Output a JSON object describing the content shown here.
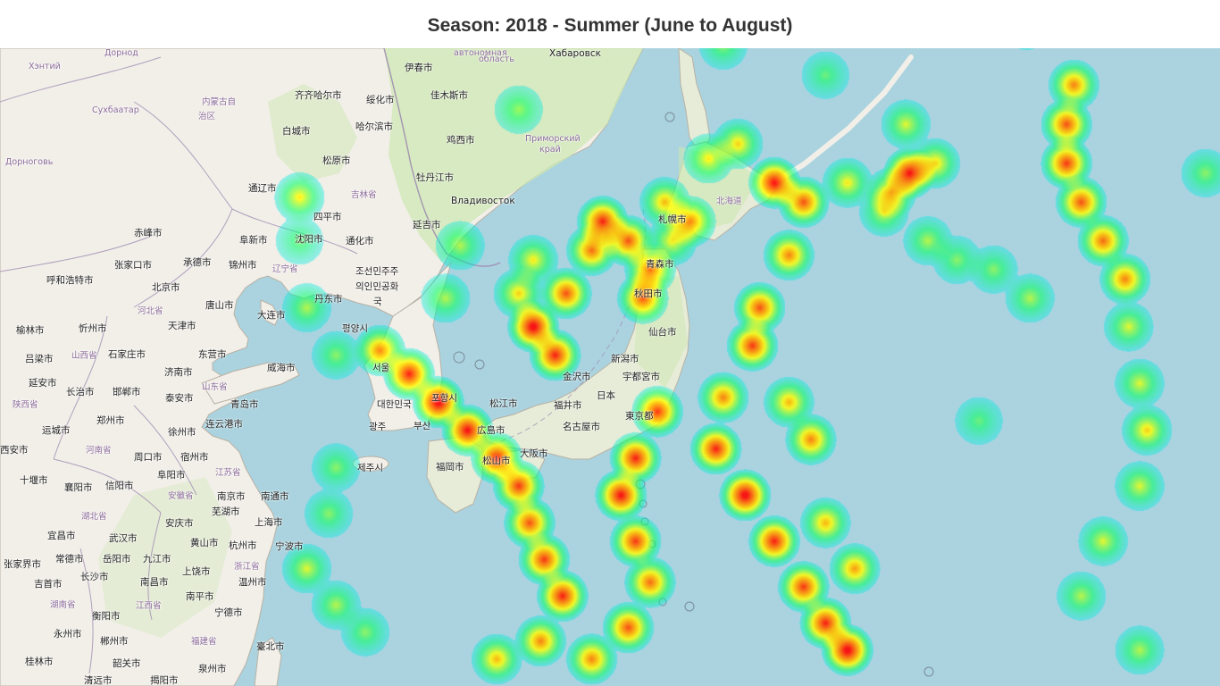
{
  "title": "Season: 2018 - Summer (June to August)",
  "map": {
    "basemap": "OpenStreetMap",
    "colors": {
      "sea": "#aad3df",
      "land": "#f2efe9",
      "forest": "#cde8b3",
      "border": "#9e8bb0"
    },
    "heat_gradient": [
      "#00e5ff",
      "#00ff66",
      "#ffff00",
      "#ff8000",
      "#ff0000"
    ],
    "labels": [
      {
        "text": "Хабаровск",
        "cls": "ru"
      },
      {
        "text": "伊春市",
        "cls": ""
      },
      {
        "text": "齐齐哈尔市",
        "cls": ""
      },
      {
        "text": "绥化市",
        "cls": ""
      },
      {
        "text": "佳木斯市",
        "cls": ""
      },
      {
        "text": "哈尔滨市",
        "cls": ""
      },
      {
        "text": "白城市",
        "cls": ""
      },
      {
        "text": "鸡西市",
        "cls": ""
      },
      {
        "text": "松原市",
        "cls": ""
      },
      {
        "text": "牡丹江市",
        "cls": ""
      },
      {
        "text": "Владивосток",
        "cls": "ru"
      },
      {
        "text": "通辽市",
        "cls": ""
      },
      {
        "text": "四平市",
        "cls": ""
      },
      {
        "text": "延吉市",
        "cls": ""
      },
      {
        "text": "赤峰市",
        "cls": ""
      },
      {
        "text": "阜新市",
        "cls": ""
      },
      {
        "text": "沈阳市",
        "cls": ""
      },
      {
        "text": "通化市",
        "cls": ""
      },
      {
        "text": "张家口市",
        "cls": ""
      },
      {
        "text": "承德市",
        "cls": ""
      },
      {
        "text": "锦州市",
        "cls": ""
      },
      {
        "text": "呼和浩特市",
        "cls": ""
      },
      {
        "text": "北京市",
        "cls": ""
      },
      {
        "text": "唐山市",
        "cls": ""
      },
      {
        "text": "丹东市",
        "cls": ""
      },
      {
        "text": "大连市",
        "cls": ""
      },
      {
        "text": "天津市",
        "cls": ""
      },
      {
        "text": "榆林市",
        "cls": ""
      },
      {
        "text": "忻州市",
        "cls": ""
      },
      {
        "text": "吕梁市",
        "cls": ""
      },
      {
        "text": "石家庄市",
        "cls": ""
      },
      {
        "text": "东营市",
        "cls": ""
      },
      {
        "text": "济南市",
        "cls": ""
      },
      {
        "text": "威海市",
        "cls": ""
      },
      {
        "text": "延安市",
        "cls": ""
      },
      {
        "text": "长治市",
        "cls": ""
      },
      {
        "text": "邯郸市",
        "cls": ""
      },
      {
        "text": "泰安市",
        "cls": ""
      },
      {
        "text": "青岛市",
        "cls": ""
      },
      {
        "text": "运城市",
        "cls": ""
      },
      {
        "text": "郑州市",
        "cls": ""
      },
      {
        "text": "连云港市",
        "cls": ""
      },
      {
        "text": "徐州市",
        "cls": ""
      },
      {
        "text": "西安市",
        "cls": ""
      },
      {
        "text": "周口市",
        "cls": ""
      },
      {
        "text": "宿州市",
        "cls": ""
      },
      {
        "text": "阜阳市",
        "cls": ""
      },
      {
        "text": "十堰市",
        "cls": ""
      },
      {
        "text": "襄阳市",
        "cls": ""
      },
      {
        "text": "信阳市",
        "cls": ""
      },
      {
        "text": "南京市",
        "cls": ""
      },
      {
        "text": "南通市",
        "cls": ""
      },
      {
        "text": "芜湖市",
        "cls": ""
      },
      {
        "text": "安庆市",
        "cls": ""
      },
      {
        "text": "上海市",
        "cls": ""
      },
      {
        "text": "宜昌市",
        "cls": ""
      },
      {
        "text": "武汉市",
        "cls": ""
      },
      {
        "text": "黄山市",
        "cls": ""
      },
      {
        "text": "杭州市",
        "cls": ""
      },
      {
        "text": "宁波市",
        "cls": ""
      },
      {
        "text": "常德市",
        "cls": ""
      },
      {
        "text": "岳阳市",
        "cls": ""
      },
      {
        "text": "九江市",
        "cls": ""
      },
      {
        "text": "张家界市",
        "cls": ""
      },
      {
        "text": "长沙市",
        "cls": ""
      },
      {
        "text": "上饶市",
        "cls": ""
      },
      {
        "text": "温州市",
        "cls": ""
      },
      {
        "text": "吉首市",
        "cls": ""
      },
      {
        "text": "南昌市",
        "cls": ""
      },
      {
        "text": "南平市",
        "cls": ""
      },
      {
        "text": "衡阳市",
        "cls": ""
      },
      {
        "text": "宁德市",
        "cls": ""
      },
      {
        "text": "永州市",
        "cls": ""
      },
      {
        "text": "郴州市",
        "cls": ""
      },
      {
        "text": "桂林市",
        "cls": ""
      },
      {
        "text": "韶关市",
        "cls": ""
      },
      {
        "text": "臺北市",
        "cls": ""
      },
      {
        "text": "泉州市",
        "cls": ""
      },
      {
        "text": "清远市",
        "cls": ""
      },
      {
        "text": "揭阳市",
        "cls": ""
      },
      {
        "text": "조선민주주",
        "cls": ""
      },
      {
        "text": "의인민공화",
        "cls": ""
      },
      {
        "text": "국",
        "cls": ""
      },
      {
        "text": "평양시",
        "cls": ""
      },
      {
        "text": "서울",
        "cls": ""
      },
      {
        "text": "대한민국",
        "cls": ""
      },
      {
        "text": "포항시",
        "cls": ""
      },
      {
        "text": "광주",
        "cls": ""
      },
      {
        "text": "부산",
        "cls": ""
      },
      {
        "text": "제주시",
        "cls": ""
      },
      {
        "text": "札幌市",
        "cls": ""
      },
      {
        "text": "青森市",
        "cls": ""
      },
      {
        "text": "秋田市",
        "cls": ""
      },
      {
        "text": "仙台市",
        "cls": ""
      },
      {
        "text": "新潟市",
        "cls": ""
      },
      {
        "text": "宇都宮市",
        "cls": ""
      },
      {
        "text": "金沢市",
        "cls": ""
      },
      {
        "text": "日本",
        "cls": ""
      },
      {
        "text": "松江市",
        "cls": ""
      },
      {
        "text": "福井市",
        "cls": ""
      },
      {
        "text": "東京都",
        "cls": ""
      },
      {
        "text": "広島市",
        "cls": ""
      },
      {
        "text": "名古屋市",
        "cls": ""
      },
      {
        "text": "福岡市",
        "cls": ""
      },
      {
        "text": "松山市",
        "cls": ""
      },
      {
        "text": "大阪市",
        "cls": ""
      },
      {
        "text": "Хэнтий",
        "cls": "prov"
      },
      {
        "text": "Дорнод",
        "cls": "prov"
      },
      {
        "text": "Сухбаатар",
        "cls": "prov"
      },
      {
        "text": "Дорноговь",
        "cls": "prov"
      },
      {
        "text": "Приморский",
        "cls": "prov"
      },
      {
        "text": "край",
        "cls": "prov"
      },
      {
        "text": "автономная",
        "cls": "prov"
      },
      {
        "text": "область",
        "cls": "prov"
      },
      {
        "text": "内蒙古自",
        "cls": "prov"
      },
      {
        "text": "治区",
        "cls": "prov"
      },
      {
        "text": "吉林省",
        "cls": "prov"
      },
      {
        "text": "辽宁省",
        "cls": "prov"
      },
      {
        "text": "河北省",
        "cls": "prov"
      },
      {
        "text": "山西省",
        "cls": "prov"
      },
      {
        "text": "山东省",
        "cls": "prov"
      },
      {
        "text": "陕西省",
        "cls": "prov"
      },
      {
        "text": "河南省",
        "cls": "prov"
      },
      {
        "text": "江苏省",
        "cls": "prov"
      },
      {
        "text": "安徽省",
        "cls": "prov"
      },
      {
        "text": "湖北省",
        "cls": "prov"
      },
      {
        "text": "浙江省",
        "cls": "prov"
      },
      {
        "text": "江西省",
        "cls": "prov"
      },
      {
        "text": "湖南省",
        "cls": "prov"
      },
      {
        "text": "福建省",
        "cls": "prov"
      },
      {
        "text": "北海道",
        "cls": "prov"
      }
    ],
    "heatmap_points": [
      {
        "lat": 31.3,
        "lon": 121.8,
        "w": 0.7
      },
      {
        "lat": 30.8,
        "lon": 122.6,
        "w": 0.9
      },
      {
        "lat": 30.2,
        "lon": 123.4,
        "w": 1.0
      },
      {
        "lat": 29.6,
        "lon": 124.2,
        "w": 0.95
      },
      {
        "lat": 29.0,
        "lon": 125.0,
        "w": 0.9
      },
      {
        "lat": 28.4,
        "lon": 125.6,
        "w": 0.85
      },
      {
        "lat": 27.6,
        "lon": 125.9,
        "w": 0.8
      },
      {
        "lat": 26.8,
        "lon": 126.3,
        "w": 0.85
      },
      {
        "lat": 26.0,
        "lon": 126.8,
        "w": 0.9
      },
      {
        "lat": 31.8,
        "lon": 126.0,
        "w": 1.0
      },
      {
        "lat": 31.2,
        "lon": 126.6,
        "w": 0.9
      },
      {
        "lat": 32.5,
        "lon": 126.9,
        "w": 0.8
      },
      {
        "lat": 33.4,
        "lon": 127.6,
        "w": 0.75
      },
      {
        "lat": 34.0,
        "lon": 127.9,
        "w": 0.9
      },
      {
        "lat": 33.6,
        "lon": 128.6,
        "w": 0.8
      },
      {
        "lat": 34.4,
        "lon": 129.6,
        "w": 0.6
      },
      {
        "lat": 34.0,
        "lon": 130.3,
        "w": 0.7
      },
      {
        "lat": 34.8,
        "lon": 132.6,
        "w": 0.95
      },
      {
        "lat": 34.4,
        "lon": 133.4,
        "w": 0.8
      },
      {
        "lat": 33.3,
        "lon": 133.0,
        "w": 0.7
      },
      {
        "lat": 32.2,
        "lon": 132.2,
        "w": 0.8
      },
      {
        "lat": 31.4,
        "lon": 132.0,
        "w": 0.85
      },
      {
        "lat": 30.3,
        "lon": 131.2,
        "w": 0.7
      },
      {
        "lat": 29.2,
        "lon": 131.0,
        "w": 0.9
      },
      {
        "lat": 28.2,
        "lon": 131.8,
        "w": 1.0
      },
      {
        "lat": 27.2,
        "lon": 132.6,
        "w": 0.9
      },
      {
        "lat": 26.2,
        "lon": 133.4,
        "w": 0.85
      },
      {
        "lat": 25.4,
        "lon": 134.0,
        "w": 0.9
      },
      {
        "lat": 24.8,
        "lon": 134.6,
        "w": 1.0
      },
      {
        "lat": 30.2,
        "lon": 133.0,
        "w": 0.6
      },
      {
        "lat": 29.4,
        "lon": 133.6,
        "w": 0.7
      },
      {
        "lat": 27.6,
        "lon": 134.0,
        "w": 0.6
      },
      {
        "lat": 26.6,
        "lon": 134.8,
        "w": 0.65
      },
      {
        "lat": 30.0,
        "lon": 129.4,
        "w": 0.85
      },
      {
        "lat": 29.0,
        "lon": 128.8,
        "w": 0.9
      },
      {
        "lat": 28.2,
        "lon": 128.4,
        "w": 0.95
      },
      {
        "lat": 27.2,
        "lon": 128.8,
        "w": 0.85
      },
      {
        "lat": 26.3,
        "lon": 129.2,
        "w": 0.75
      },
      {
        "lat": 25.3,
        "lon": 128.6,
        "w": 0.8
      },
      {
        "lat": 24.6,
        "lon": 127.6,
        "w": 0.7
      },
      {
        "lat": 25.0,
        "lon": 126.2,
        "w": 0.7
      },
      {
        "lat": 24.6,
        "lon": 125.0,
        "w": 0.6
      },
      {
        "lat": 36.8,
        "lon": 140.8,
        "w": 0.7
      },
      {
        "lat": 36.0,
        "lon": 140.6,
        "w": 0.8
      },
      {
        "lat": 35.2,
        "lon": 140.6,
        "w": 0.85
      },
      {
        "lat": 34.4,
        "lon": 141.0,
        "w": 0.8
      },
      {
        "lat": 33.6,
        "lon": 141.6,
        "w": 0.75
      },
      {
        "lat": 32.8,
        "lon": 142.2,
        "w": 0.7
      },
      {
        "lat": 31.8,
        "lon": 142.3,
        "w": 0.45
      },
      {
        "lat": 30.6,
        "lon": 142.6,
        "w": 0.45
      },
      {
        "lat": 29.6,
        "lon": 142.8,
        "w": 0.55
      },
      {
        "lat": 28.4,
        "lon": 142.6,
        "w": 0.45
      },
      {
        "lat": 27.2,
        "lon": 141.6,
        "w": 0.45
      },
      {
        "lat": 26.0,
        "lon": 141.0,
        "w": 0.4
      },
      {
        "lat": 24.8,
        "lon": 142.6,
        "w": 0.4
      },
      {
        "lat": 35.6,
        "lon": 131.6,
        "w": 0.55
      },
      {
        "lat": 35.3,
        "lon": 130.8,
        "w": 0.5
      },
      {
        "lat": 34.8,
        "lon": 134.6,
        "w": 0.5
      },
      {
        "lat": 34.2,
        "lon": 135.6,
        "w": 0.45
      },
      {
        "lat": 33.6,
        "lon": 136.8,
        "w": 0.4
      },
      {
        "lat": 33.2,
        "lon": 137.6,
        "w": 0.35
      },
      {
        "lat": 33.0,
        "lon": 138.6,
        "w": 0.35
      },
      {
        "lat": 32.4,
        "lon": 139.6,
        "w": 0.4
      },
      {
        "lat": 35.2,
        "lon": 137.0,
        "w": 0.55
      },
      {
        "lat": 36.0,
        "lon": 136.2,
        "w": 0.45
      },
      {
        "lat": 35.0,
        "lon": 136.3,
        "w": 0.95
      },
      {
        "lat": 34.6,
        "lon": 135.8,
        "w": 0.6
      },
      {
        "lat": 33.6,
        "lon": 129.8,
        "w": 0.5
      },
      {
        "lat": 33.0,
        "lon": 129.2,
        "w": 0.75
      },
      {
        "lat": 32.4,
        "lon": 129.0,
        "w": 0.8
      },
      {
        "lat": 33.2,
        "lon": 126.0,
        "w": 0.5
      },
      {
        "lat": 32.5,
        "lon": 125.6,
        "w": 0.55
      },
      {
        "lat": 33.5,
        "lon": 124.0,
        "w": 0.4
      },
      {
        "lat": 32.4,
        "lon": 123.6,
        "w": 0.4
      },
      {
        "lat": 31.2,
        "lon": 120.6,
        "w": 0.35
      },
      {
        "lat": 32.2,
        "lon": 119.8,
        "w": 0.4
      },
      {
        "lat": 33.6,
        "lon": 119.6,
        "w": 0.3
      },
      {
        "lat": 34.5,
        "lon": 119.6,
        "w": 0.5
      },
      {
        "lat": 28.8,
        "lon": 120.6,
        "w": 0.35
      },
      {
        "lat": 27.8,
        "lon": 120.4,
        "w": 0.35
      },
      {
        "lat": 26.6,
        "lon": 119.8,
        "w": 0.45
      },
      {
        "lat": 25.8,
        "lon": 120.6,
        "w": 0.4
      },
      {
        "lat": 25.2,
        "lon": 121.4,
        "w": 0.35
      },
      {
        "lat": 36.3,
        "lon": 125.6,
        "w": 0.35
      },
      {
        "lat": 38.2,
        "lon": 130.6,
        "w": 0.35
      },
      {
        "lat": 38.6,
        "lon": 131.6,
        "w": 0.35
      },
      {
        "lat": 37.6,
        "lon": 131.2,
        "w": 0.35
      },
      {
        "lat": 39.0,
        "lon": 133.6,
        "w": 0.35
      },
      {
        "lat": 39.8,
        "lon": 134.6,
        "w": 0.35
      },
      {
        "lat": 40.8,
        "lon": 136.6,
        "w": 0.3
      },
      {
        "lat": 42.8,
        "lon": 138.8,
        "w": 0.3
      },
      {
        "lat": 43.8,
        "lon": 138.8,
        "w": 0.3
      },
      {
        "lat": 38.6,
        "lon": 133.0,
        "w": 0.55
      },
      {
        "lat": 37.0,
        "lon": 134.0,
        "w": 0.3
      },
      {
        "lat": 38.5,
        "lon": 138.0,
        "w": 0.35
      },
      {
        "lat": 38.0,
        "lon": 139.5,
        "w": 0.35
      },
      {
        "lat": 38.8,
        "lon": 139.8,
        "w": 0.3
      },
      {
        "lat": 38.2,
        "lon": 142.0,
        "w": 0.35
      },
      {
        "lat": 38.8,
        "lon": 143.6,
        "w": 0.35
      },
      {
        "lat": 35.0,
        "lon": 144.4,
        "w": 0.35
      },
      {
        "lat": 29.8,
        "lon": 138.2,
        "w": 0.3
      },
      {
        "lat": 41.2,
        "lon": 152.6,
        "w": 0.35
      },
      {
        "lat": 40.2,
        "lon": 153.0,
        "w": 0.35
      },
      {
        "lat": 38.4,
        "lon": 154.2,
        "w": 0.5
      },
      {
        "lat": 37.4,
        "lon": 154.8,
        "w": 0.35
      },
      {
        "lat": 35.8,
        "lon": 155.6,
        "w": 0.35
      },
      {
        "lat": 34.4,
        "lon": 156.0,
        "w": 0.35
      },
      {
        "lat": 33.2,
        "lon": 156.6,
        "w": 0.5
      },
      {
        "lat": 32.0,
        "lon": 156.8,
        "w": 0.75
      },
      {
        "lat": 31.0,
        "lon": 156.8,
        "w": 0.8
      },
      {
        "lat": 30.0,
        "lon": 157.0,
        "w": 0.6
      },
      {
        "lat": 28.9,
        "lon": 157.2,
        "w": 0.55
      },
      {
        "lat": 27.8,
        "lon": 157.0,
        "w": 0.4
      }
    ]
  }
}
